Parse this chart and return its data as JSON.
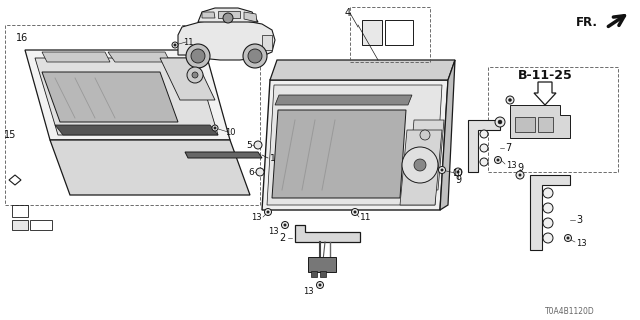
{
  "bg_color": "#ffffff",
  "diagram_code": "T0A4B1120D",
  "ref_label": "B-11-25",
  "fr_label": "FR.",
  "lc": "#1a1a1a",
  "tc": "#111111",
  "gray_light": "#e8e8e8",
  "gray_med": "#cccccc",
  "gray_dark": "#888888",
  "screen_color": "#b8b8b8",
  "car_gray": "#d0d0d0"
}
